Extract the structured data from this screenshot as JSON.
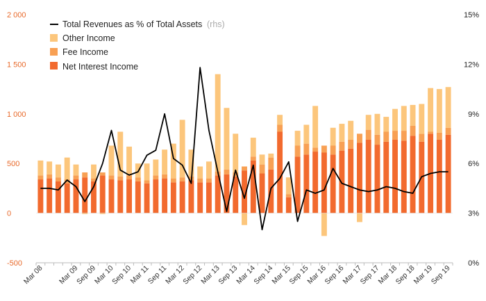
{
  "chart_data": {
    "type": "bar",
    "stacked": true,
    "categories": [
      "Mar 08",
      "Jun 08",
      "Sep 08",
      "Dec 08",
      "Mar 09",
      "Jun 09",
      "Sep 09",
      "Dec 09",
      "Mar 10",
      "Jun 10",
      "Sep 10",
      "Dec 10",
      "Mar 11",
      "Jun 11",
      "Sep 11",
      "Dec 11",
      "Mar 12",
      "Jun 12",
      "Sep 12",
      "Dec 12",
      "Mar 13",
      "Jun 13",
      "Sep 13",
      "Dec 13",
      "Mar 14",
      "Jun 14",
      "Sep 14",
      "Dec 14",
      "Mar 15",
      "Jun 15",
      "Sep 15",
      "Dec 15",
      "Mar 16",
      "Jun 16",
      "Sep 16",
      "Dec 16",
      "Mar 17",
      "Jun 17",
      "Sep 17",
      "Dec 17",
      "Mar 18",
      "Jun 18",
      "Sep 18",
      "Dec 18",
      "Mar 19",
      "Jun 19",
      "Sep 19"
    ],
    "x_tick_labels": [
      "Mar 08",
      "Mar 09",
      "Sep 09",
      "Mar 10",
      "Sep 10",
      "Mar 11",
      "Sep 11",
      "Mar 12",
      "Sep 12",
      "Mar 13",
      "Sep 13",
      "Mar 14",
      "Sep 14",
      "Mar 15",
      "Sep 15",
      "Mar 16",
      "Sep 16",
      "Mar 17",
      "Sep 17",
      "Mar 18",
      "Sep 18",
      "Mar 19",
      "Sep 19"
    ],
    "series": [
      {
        "name": "Net Interest Income",
        "axis": "left",
        "color": "#f26a2e",
        "values": [
          340,
          350,
          320,
          300,
          340,
          360,
          320,
          380,
          340,
          330,
          340,
          320,
          300,
          340,
          350,
          310,
          320,
          330,
          310,
          310,
          380,
          390,
          370,
          430,
          530,
          400,
          440,
          820,
          160,
          570,
          590,
          620,
          610,
          590,
          630,
          650,
          710,
          740,
          690,
          720,
          740,
          730,
          780,
          720,
          800,
          740,
          790
        ]
      },
      {
        "name": "Fee Income",
        "axis": "left",
        "color": "#f8a054",
        "values": [
          40,
          40,
          40,
          40,
          40,
          50,
          30,
          30,
          40,
          40,
          40,
          40,
          30,
          40,
          40,
          40,
          40,
          40,
          40,
          40,
          40,
          50,
          40,
          40,
          40,
          90,
          120,
          70,
          30,
          110,
          110,
          40,
          70,
          90,
          90,
          90,
          90,
          100,
          100,
          100,
          90,
          100,
          100,
          80,
          20,
          70,
          70
        ]
      },
      {
        "name": "Other Income",
        "axis": "left",
        "color": "#fcc67c",
        "values": [
          150,
          130,
          130,
          220,
          110,
          -10,
          140,
          -10,
          300,
          450,
          290,
          140,
          170,
          160,
          250,
          350,
          580,
          270,
          120,
          170,
          980,
          620,
          390,
          -120,
          190,
          100,
          40,
          100,
          170,
          150,
          190,
          420,
          -230,
          180,
          180,
          190,
          -90,
          150,
          210,
          150,
          220,
          250,
          210,
          300,
          440,
          440,
          410
        ]
      },
      {
        "name": "Total Revenues as % of Total Assets",
        "axis": "right",
        "type": "line",
        "color": "#000000",
        "suffix_label": "(rhs)",
        "values": [
          4.5,
          4.5,
          4.4,
          5.0,
          4.6,
          3.7,
          4.6,
          6.0,
          8.0,
          5.6,
          5.3,
          5.5,
          6.5,
          6.8,
          9.0,
          6.3,
          5.9,
          4.8,
          11.8,
          8.0,
          5.5,
          3.1,
          5.6,
          3.9,
          5.9,
          2.0,
          4.5,
          5.1,
          6.1,
          2.5,
          4.4,
          4.2,
          4.4,
          5.7,
          4.8,
          4.6,
          4.4,
          4.3,
          4.4,
          4.6,
          4.5,
          4.3,
          4.2,
          5.2,
          5.4,
          5.5,
          5.5
        ]
      }
    ],
    "legend": {
      "position": "top-left",
      "entries": [
        "Total Revenues as % of Total Assets",
        "(rhs)",
        "Other Income",
        "Fee Income",
        "Net Interest Income"
      ]
    },
    "y_left": {
      "range": [
        -500,
        2000
      ],
      "ticks": [
        "-500",
        "0",
        "500",
        "1 000",
        "1 500",
        "2 000"
      ],
      "tick_values": [
        -500,
        0,
        500,
        1000,
        1500,
        2000
      ],
      "color": "#e8692a"
    },
    "y_right": {
      "range": [
        0,
        15
      ],
      "ticks": [
        "0%",
        "3%",
        "6%",
        "9%",
        "12%",
        "15%"
      ],
      "tick_values": [
        0,
        3,
        6,
        9,
        12,
        15
      ]
    },
    "grid": false
  }
}
